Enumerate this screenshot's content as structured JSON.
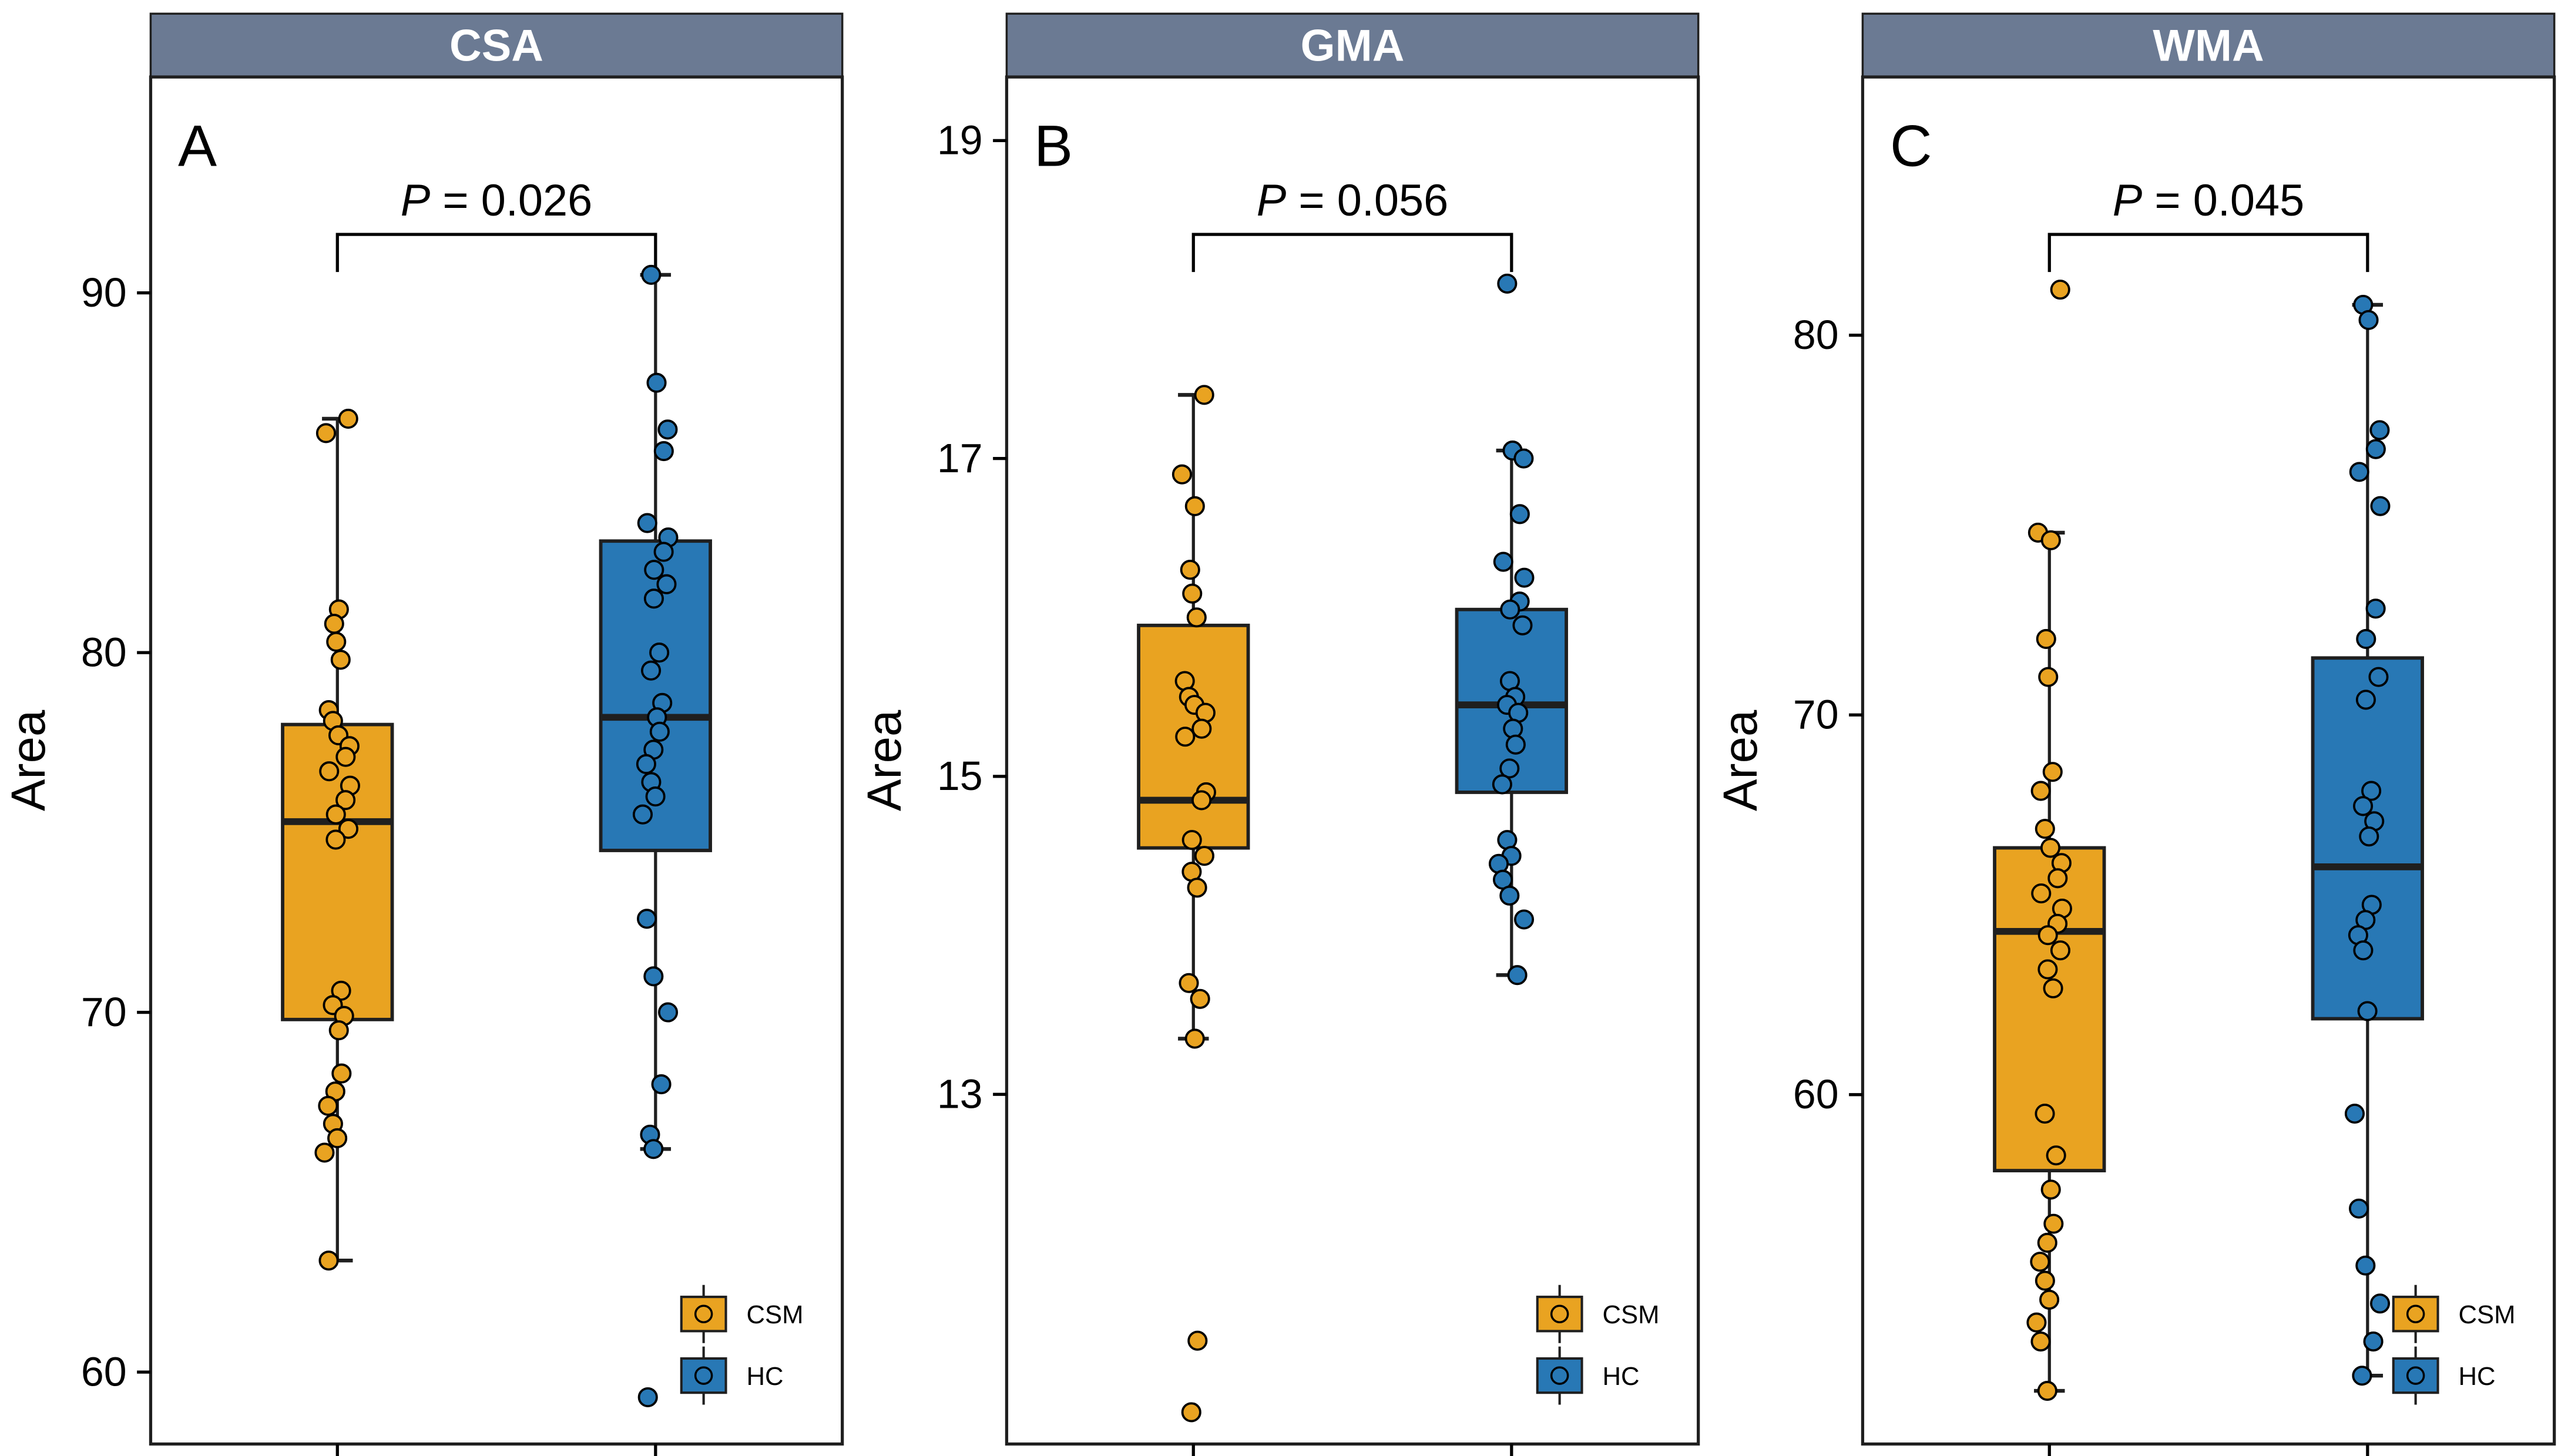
{
  "figure": {
    "background": "#FFFFFF"
  },
  "colors": {
    "header_bg": "#6B7A93",
    "header_text": "#FFFFFF",
    "csm": "#E9A321",
    "hc": "#2878B5",
    "box_border": "#1F1F1F",
    "axis": "#000000"
  },
  "legend": {
    "items": [
      {
        "label": "CSM",
        "color": "#E9A321"
      },
      {
        "label": "HC",
        "color": "#2878B5"
      }
    ]
  },
  "chart_data": [
    {
      "type": "box",
      "title": "CSA",
      "panel_label": "A",
      "p_label": "P = 0.026",
      "ylabel": "Area",
      "ylim": [
        58,
        96
      ],
      "yticks": [
        60,
        70,
        80,
        90
      ],
      "grid": false,
      "legend_position": "bottom-right",
      "groups": [
        {
          "name": "CSM",
          "color": "#E9A321",
          "box": {
            "q1": 69.8,
            "median": 75.3,
            "q3": 78.0,
            "whisker_low": 63.1,
            "whisker_high": 86.5
          },
          "points": [
            86.5,
            86.1,
            81.2,
            80.8,
            80.3,
            79.8,
            78.4,
            78.1,
            77.7,
            77.4,
            77.1,
            76.7,
            76.3,
            75.9,
            75.5,
            75.1,
            74.8,
            70.6,
            70.2,
            69.9,
            69.5,
            68.3,
            67.8,
            67.4,
            66.9,
            66.5,
            66.1,
            63.1
          ]
        },
        {
          "name": "HC",
          "color": "#2878B5",
          "box": {
            "q1": 74.5,
            "median": 78.2,
            "q3": 83.1,
            "whisker_low": 66.2,
            "whisker_high": 90.5
          },
          "points": [
            90.5,
            87.5,
            86.2,
            85.6,
            83.6,
            83.2,
            82.8,
            82.3,
            81.9,
            81.5,
            80.0,
            79.5,
            78.6,
            78.2,
            77.8,
            77.3,
            76.9,
            76.4,
            76.0,
            75.5,
            72.6,
            71.0,
            70.0,
            68.0,
            66.6,
            66.2,
            59.3
          ]
        }
      ]
    },
    {
      "type": "box",
      "title": "GMA",
      "panel_label": "B",
      "p_label": "P = 0.056",
      "ylabel": "Area",
      "ylim": [
        10.8,
        19.4
      ],
      "yticks": [
        13,
        15,
        17,
        19
      ],
      "grid": false,
      "legend_position": "bottom-right",
      "groups": [
        {
          "name": "CSM",
          "color": "#E9A321",
          "box": {
            "q1": 14.55,
            "median": 14.85,
            "q3": 15.95,
            "whisker_low": 13.35,
            "whisker_high": 17.4
          },
          "points": [
            17.4,
            16.9,
            16.7,
            16.3,
            16.15,
            16.0,
            15.6,
            15.5,
            15.45,
            15.4,
            15.3,
            15.25,
            14.9,
            14.85,
            14.6,
            14.5,
            14.4,
            14.3,
            13.7,
            13.6,
            13.35,
            11.45,
            11.0
          ]
        },
        {
          "name": "HC",
          "color": "#2878B5",
          "box": {
            "q1": 14.9,
            "median": 15.45,
            "q3": 16.05,
            "whisker_low": 13.75,
            "whisker_high": 17.05
          },
          "points": [
            18.1,
            17.05,
            17.0,
            16.65,
            16.35,
            16.25,
            16.1,
            16.05,
            15.95,
            15.6,
            15.5,
            15.45,
            15.4,
            15.3,
            15.2,
            15.05,
            14.95,
            14.6,
            14.5,
            14.45,
            14.35,
            14.25,
            14.1,
            13.75
          ]
        }
      ]
    },
    {
      "type": "box",
      "title": "WMA",
      "panel_label": "C",
      "p_label": "P = 0.045",
      "ylabel": "Area",
      "ylim": [
        50.8,
        86.8
      ],
      "yticks": [
        60,
        70,
        80
      ],
      "grid": false,
      "legend_position": "bottom-right",
      "groups": [
        {
          "name": "CSM",
          "color": "#E9A321",
          "box": {
            "q1": 58.0,
            "median": 64.3,
            "q3": 66.5,
            "whisker_low": 52.2,
            "whisker_high": 74.8
          },
          "points": [
            81.2,
            74.8,
            74.6,
            72.0,
            71.0,
            68.5,
            68.0,
            67.0,
            66.5,
            66.1,
            65.7,
            65.3,
            64.9,
            64.5,
            64.2,
            63.8,
            63.3,
            62.8,
            59.5,
            58.4,
            57.5,
            56.6,
            56.1,
            55.6,
            55.1,
            54.6,
            54.0,
            53.5,
            52.2
          ]
        },
        {
          "name": "HC",
          "color": "#2878B5",
          "box": {
            "q1": 62.0,
            "median": 66.0,
            "q3": 71.5,
            "whisker_low": 52.6,
            "whisker_high": 80.8
          },
          "points": [
            80.8,
            80.4,
            77.5,
            77.0,
            76.4,
            75.5,
            72.8,
            72.0,
            71.0,
            70.4,
            68.0,
            67.6,
            67.2,
            66.8,
            65.0,
            64.6,
            64.2,
            63.8,
            62.2,
            59.5,
            57.0,
            55.5,
            54.5,
            53.5,
            52.6
          ]
        }
      ]
    }
  ]
}
